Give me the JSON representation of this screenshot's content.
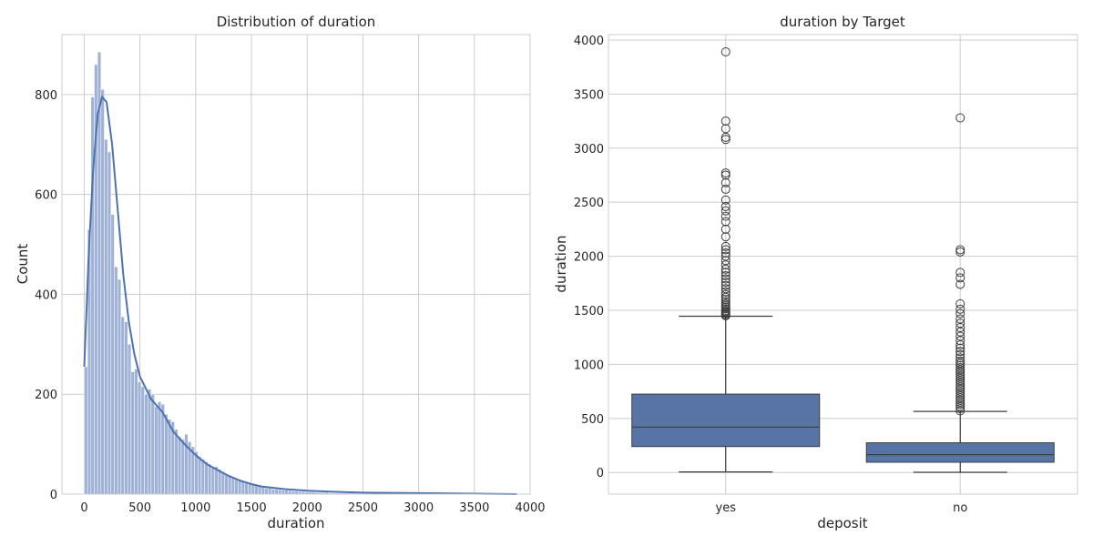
{
  "chart_data": [
    {
      "type": "histogram",
      "title": "Distribution of duration",
      "xlabel": "duration",
      "ylabel": "Count",
      "xlim": [
        -200,
        4000
      ],
      "ylim": [
        0,
        920
      ],
      "x_ticks": [
        "0",
        "500",
        "1000",
        "1500",
        "2000",
        "2500",
        "3000",
        "3500",
        "4000"
      ],
      "y_ticks": [
        "0",
        "200",
        "400",
        "600",
        "800"
      ],
      "grid": true,
      "bin_width": 30,
      "bins_start": 0,
      "counts": [
        255,
        530,
        795,
        860,
        885,
        810,
        710,
        685,
        560,
        455,
        430,
        355,
        345,
        300,
        245,
        250,
        225,
        215,
        200,
        210,
        200,
        175,
        185,
        180,
        160,
        150,
        145,
        130,
        115,
        110,
        120,
        105,
        95,
        85,
        75,
        70,
        65,
        60,
        55,
        55,
        50,
        45,
        40,
        38,
        35,
        30,
        28,
        25,
        22,
        20,
        20,
        18,
        16,
        14,
        12,
        12,
        10,
        10,
        9,
        8,
        8,
        7,
        6,
        6,
        5,
        5,
        4,
        4,
        4,
        3,
        3,
        3,
        3,
        2,
        2,
        2,
        2,
        2,
        2,
        2,
        2,
        1,
        1,
        1,
        1,
        1,
        1,
        1,
        1,
        1,
        1,
        1,
        1,
        1,
        1,
        1,
        1,
        1,
        1,
        1,
        1,
        1,
        1,
        1,
        1,
        1,
        1,
        1,
        1,
        1,
        1,
        1,
        1,
        1,
        1,
        1,
        1,
        1,
        1,
        1,
        1,
        1,
        1,
        1,
        1,
        1,
        1,
        1,
        1
      ],
      "kde": {
        "x": [
          0,
          40,
          80,
          120,
          160,
          200,
          250,
          300,
          350,
          400,
          450,
          500,
          600,
          700,
          800,
          900,
          1000,
          1100,
          1200,
          1300,
          1400,
          1500,
          1600,
          1800,
          2000,
          2200,
          2500,
          3000,
          3500,
          3880
        ],
        "y": [
          255,
          480,
          650,
          760,
          795,
          785,
          700,
          570,
          440,
          345,
          280,
          235,
          190,
          165,
          125,
          100,
          78,
          60,
          48,
          36,
          27,
          20,
          15,
          10,
          7,
          5,
          3,
          2,
          1,
          0
        ]
      }
    },
    {
      "type": "box",
      "title": "duration by Target",
      "xlabel": "deposit",
      "ylabel": "duration",
      "categories": [
        "yes",
        "no"
      ],
      "ylim": [
        -200,
        4050
      ],
      "y_ticks": [
        "0",
        "500",
        "1000",
        "1500",
        "2000",
        "2500",
        "3000",
        "3500",
        "4000"
      ],
      "grid": true,
      "color": "#5874a6",
      "boxes": [
        {
          "name": "yes",
          "whisker_low": 5,
          "q1": 240,
          "median": 420,
          "q3": 725,
          "whisker_high": 1445,
          "outliers": [
            1450,
            1460,
            1470,
            1480,
            1490,
            1500,
            1515,
            1530,
            1545,
            1560,
            1580,
            1600,
            1620,
            1645,
            1670,
            1700,
            1730,
            1760,
            1790,
            1820,
            1850,
            1880,
            1920,
            1960,
            2000,
            2030,
            2060,
            2090,
            2180,
            2250,
            2320,
            2370,
            2420,
            2460,
            2520,
            2620,
            2680,
            2750,
            2770,
            3080,
            3100,
            3180,
            3250,
            3890
          ]
        },
        {
          "name": "no",
          "whisker_low": 2,
          "q1": 95,
          "median": 165,
          "q3": 275,
          "whisker_high": 565,
          "outliers": [
            570,
            590,
            610,
            630,
            650,
            670,
            690,
            710,
            730,
            750,
            770,
            790,
            810,
            830,
            850,
            870,
            890,
            910,
            930,
            950,
            970,
            990,
            1010,
            1030,
            1060,
            1090,
            1120,
            1150,
            1180,
            1220,
            1260,
            1300,
            1340,
            1380,
            1420,
            1470,
            1510,
            1560,
            1740,
            1800,
            1850,
            2040,
            2060,
            3280
          ]
        }
      ]
    }
  ]
}
